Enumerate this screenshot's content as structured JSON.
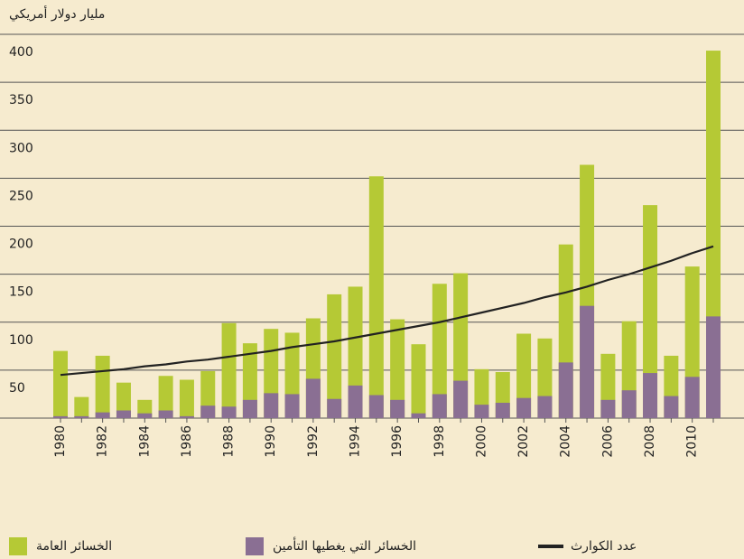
{
  "chart_data": {
    "type": "bar",
    "y_label": "مليار دولار أمريكي",
    "categories": [
      "1980",
      null,
      "1982",
      null,
      "1984",
      null,
      "1986",
      null,
      "1988",
      null,
      "1990",
      null,
      "1992",
      null,
      "1994",
      null,
      "1996",
      null,
      "1998",
      null,
      "2000",
      null,
      "2002",
      null,
      "2004",
      null,
      "2006",
      null,
      "2008",
      null,
      "2010",
      null
    ],
    "series": [
      {
        "name": "الخسائر العامة",
        "color": "#b5c935",
        "type": "bar",
        "values": [
          70,
          22,
          65,
          37,
          19,
          44,
          40,
          49,
          99,
          78,
          93,
          89,
          104,
          129,
          137,
          252,
          103,
          77,
          140,
          151,
          51,
          48,
          88,
          83,
          181,
          264,
          67,
          101,
          222,
          65,
          158,
          383
        ]
      },
      {
        "name": "الخسائر التي يغطيها التأمين",
        "color": "#8a6f93",
        "type": "bar",
        "values": [
          2,
          2,
          6,
          8,
          5,
          8,
          2,
          13,
          12,
          19,
          26,
          25,
          41,
          20,
          34,
          24,
          19,
          5,
          25,
          39,
          14,
          16,
          21,
          23,
          58,
          117,
          19,
          29,
          47,
          23,
          43,
          106
        ]
      },
      {
        "name": "عدد الكوارث",
        "color": "#222222",
        "type": "line",
        "values": [
          45,
          47,
          49,
          51,
          54,
          56,
          59,
          61,
          64,
          67,
          70,
          74,
          77,
          80,
          84,
          88,
          92,
          96,
          100,
          105,
          110,
          115,
          120,
          126,
          131,
          137,
          144,
          150,
          157,
          164,
          172,
          179
        ]
      }
    ],
    "ylim": [
      0,
      400
    ],
    "yticks": [
      50,
      100,
      150,
      200,
      250,
      300,
      350,
      400
    ],
    "grid": true
  }
}
